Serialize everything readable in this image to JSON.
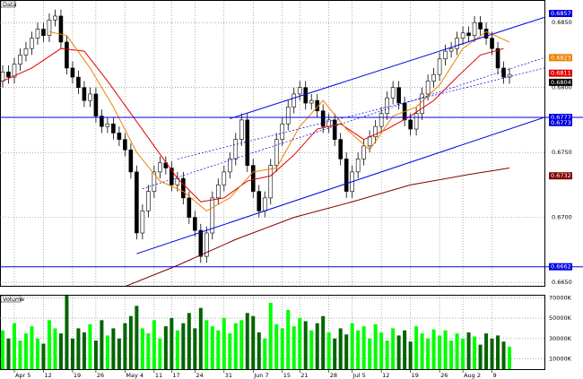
{
  "chart_data": [
    {
      "type": "candlestick",
      "series": [
        {
          "name": "Data",
          "open": [
            0.6805,
            0.6812,
            0.6808,
            0.6818,
            0.6825,
            0.683,
            0.6838,
            0.6845,
            0.684,
            0.6852,
            0.6855,
            0.6835,
            0.6815,
            0.6808,
            0.68,
            0.679,
            0.6795,
            0.6778,
            0.677,
            0.6772,
            0.6765,
            0.676,
            0.6752,
            0.6735,
            0.6688,
            0.6705,
            0.672,
            0.6735,
            0.6742,
            0.6738,
            0.6725,
            0.673,
            0.6715,
            0.67,
            0.669,
            0.667,
            0.6688,
            0.6715,
            0.6725,
            0.6735,
            0.6745,
            0.676,
            0.6775,
            0.674,
            0.672,
            0.6705,
            0.6715,
            0.674,
            0.676,
            0.6772,
            0.6785,
            0.6795,
            0.68,
            0.6788,
            0.679,
            0.6782,
            0.677,
            0.6775,
            0.676,
            0.6745,
            0.672,
            0.6735,
            0.6745,
            0.6755,
            0.6762,
            0.677,
            0.678,
            0.6792,
            0.68,
            0.6788,
            0.6775,
            0.6768,
            0.678,
            0.6795,
            0.6805,
            0.681,
            0.6822,
            0.6828,
            0.683,
            0.6838,
            0.6842,
            0.684,
            0.685,
            0.6845,
            0.6838,
            0.683,
            0.6815,
            0.6808
          ],
          "high": [
            0.6817,
            0.6817,
            0.6823,
            0.683,
            0.6835,
            0.6843,
            0.685,
            0.685,
            0.6857,
            0.686,
            0.686,
            0.684,
            0.682,
            0.6813,
            0.6805,
            0.68,
            0.68,
            0.6783,
            0.6777,
            0.6777,
            0.677,
            0.6765,
            0.6757,
            0.674,
            0.671,
            0.6725,
            0.674,
            0.6747,
            0.6747,
            0.6743,
            0.6735,
            0.6735,
            0.672,
            0.6705,
            0.6695,
            0.6693,
            0.672,
            0.673,
            0.674,
            0.675,
            0.6765,
            0.678,
            0.678,
            0.6745,
            0.6725,
            0.672,
            0.6745,
            0.6765,
            0.6777,
            0.679,
            0.68,
            0.6805,
            0.6805,
            0.6795,
            0.6795,
            0.6787,
            0.678,
            0.678,
            0.6765,
            0.675,
            0.674,
            0.675,
            0.676,
            0.6767,
            0.6775,
            0.6785,
            0.6797,
            0.6805,
            0.6805,
            0.6793,
            0.678,
            0.6785,
            0.68,
            0.681,
            0.6815,
            0.6827,
            0.6833,
            0.6835,
            0.6843,
            0.6847,
            0.6847,
            0.6855,
            0.6855,
            0.685,
            0.6843,
            0.6835,
            0.682,
            0.6815
          ],
          "low": [
            0.68,
            0.6803,
            0.6803,
            0.6813,
            0.682,
            0.6825,
            0.6833,
            0.6835,
            0.6835,
            0.6847,
            0.683,
            0.681,
            0.6803,
            0.6795,
            0.6785,
            0.6785,
            0.6773,
            0.6765,
            0.6765,
            0.676,
            0.6755,
            0.6747,
            0.673,
            0.6683,
            0.6683,
            0.67,
            0.6715,
            0.673,
            0.6733,
            0.672,
            0.672,
            0.671,
            0.6695,
            0.6685,
            0.6665,
            0.6665,
            0.6683,
            0.671,
            0.672,
            0.673,
            0.674,
            0.6755,
            0.6735,
            0.6715,
            0.67,
            0.67,
            0.671,
            0.6735,
            0.6755,
            0.6767,
            0.678,
            0.679,
            0.6783,
            0.6783,
            0.6777,
            0.6765,
            0.6765,
            0.6755,
            0.674,
            0.6715,
            0.6715,
            0.673,
            0.674,
            0.675,
            0.6757,
            0.6765,
            0.6775,
            0.6787,
            0.6783,
            0.677,
            0.6763,
            0.6763,
            0.6775,
            0.679,
            0.68,
            0.6805,
            0.6817,
            0.6823,
            0.6825,
            0.6833,
            0.6835,
            0.6835,
            0.684,
            0.6833,
            0.6825,
            0.681,
            0.6803,
            0.6803
          ],
          "close": [
            0.6812,
            0.6808,
            0.6818,
            0.6825,
            0.683,
            0.6838,
            0.6845,
            0.684,
            0.6852,
            0.6855,
            0.6835,
            0.6815,
            0.6808,
            0.68,
            0.679,
            0.6795,
            0.6778,
            0.677,
            0.6772,
            0.6765,
            0.676,
            0.6752,
            0.6735,
            0.6688,
            0.6705,
            0.672,
            0.6735,
            0.6742,
            0.6738,
            0.6725,
            0.673,
            0.6715,
            0.67,
            0.669,
            0.667,
            0.6688,
            0.6715,
            0.6725,
            0.6735,
            0.6745,
            0.676,
            0.6775,
            0.674,
            0.672,
            0.6705,
            0.6715,
            0.674,
            0.676,
            0.6772,
            0.6785,
            0.6795,
            0.68,
            0.6788,
            0.679,
            0.6782,
            0.677,
            0.6775,
            0.676,
            0.6745,
            0.672,
            0.6735,
            0.6745,
            0.6755,
            0.6762,
            0.677,
            0.678,
            0.6792,
            0.68,
            0.6788,
            0.6775,
            0.6768,
            0.678,
            0.6795,
            0.6805,
            0.681,
            0.6822,
            0.6828,
            0.683,
            0.6838,
            0.6842,
            0.684,
            0.685,
            0.6845,
            0.6838,
            0.683,
            0.6815,
            0.6808,
            0.681
          ]
        }
      ],
      "lines": [
        {
          "color": "#e00000",
          "x": [
            0,
            5,
            10,
            14,
            18,
            22,
            26,
            30,
            34,
            38,
            42,
            46,
            50,
            54,
            58,
            62,
            66,
            70,
            74,
            78,
            82,
            86
          ],
          "values": [
            0.6805,
            0.6815,
            0.683,
            0.6828,
            0.6805,
            0.678,
            0.6755,
            0.673,
            0.6712,
            0.6715,
            0.6728,
            0.6732,
            0.6748,
            0.6768,
            0.6772,
            0.676,
            0.6768,
            0.6778,
            0.679,
            0.6808,
            0.6825,
            0.683
          ]
        },
        {
          "color": "#f08000",
          "x": [
            8,
            11,
            15,
            19,
            23,
            27,
            31,
            35,
            39,
            43,
            47,
            51,
            55,
            59,
            63,
            67,
            71,
            75,
            79,
            83,
            87
          ],
          "values": [
            0.6843,
            0.684,
            0.6815,
            0.6785,
            0.675,
            0.6728,
            0.672,
            0.6705,
            0.6715,
            0.6735,
            0.6738,
            0.677,
            0.679,
            0.6768,
            0.6752,
            0.6778,
            0.6785,
            0.6802,
            0.683,
            0.6843,
            0.6835
          ]
        },
        {
          "color": "#800000",
          "x": [
            20,
            30,
            40,
            50,
            60,
            70,
            80,
            87
          ],
          "values": [
            0.6645,
            0.6663,
            0.6683,
            0.67,
            0.6712,
            0.6725,
            0.6733,
            0.6738
          ]
        },
        {
          "color": "#0000e0",
          "x": [
            39,
            93
          ],
          "values": [
            0.6776,
            0.6854
          ]
        },
        {
          "color": "#0000e0",
          "x": [
            23,
            93
          ],
          "values": [
            0.6672,
            0.6777
          ]
        },
        {
          "color": "#0000e0",
          "x": [
            24,
            93
          ],
          "values": [
            0.6722,
            0.6823
          ],
          "dash": true
        },
        {
          "color": "#0000e0",
          "x": [
            30,
            93
          ],
          "values": [
            0.6745,
            0.6815
          ],
          "dash": true
        }
      ],
      "price_labels": [
        {
          "value": 0.6857,
          "label": "0.6857",
          "color": "#0000e0"
        },
        {
          "value": 0.6823,
          "label": "0.6823",
          "color": "#f08000"
        },
        {
          "value": 0.6811,
          "label": "0.6811",
          "color": "#e00000"
        },
        {
          "value": 0.6804,
          "label": "0.6804",
          "color": "#000000"
        },
        {
          "value": 0.6777,
          "label": "0.6777",
          "color": "#0000e0",
          "line": true
        },
        {
          "value": 0.6773,
          "label": "0.6773",
          "color": "#0000e0"
        },
        {
          "value": 0.6732,
          "label": "0.6732",
          "color": "#800000"
        },
        {
          "value": 0.6662,
          "label": "0.6662",
          "color": "#0000e0",
          "line": true
        }
      ],
      "xlim": [
        -0.46,
        93
      ],
      "ylim": [
        0.6648,
        0.6866
      ],
      "yticks": [
        {
          "value": 0.685,
          "label": "0.6850"
        },
        {
          "value": 0.68,
          "label": "0.6800"
        },
        {
          "value": 0.675,
          "label": "0.6750"
        },
        {
          "value": 0.67,
          "label": "0.6700"
        },
        {
          "value": 0.665,
          "label": "0.6650"
        }
      ],
      "grid": true
    },
    {
      "type": "bar",
      "title": "Volume",
      "values": [
        38000,
        30000,
        45000,
        28000,
        35000,
        42000,
        30000,
        25000,
        48000,
        40000,
        35000,
        74000,
        30000,
        40000,
        36000,
        44000,
        28000,
        48000,
        33000,
        40000,
        30000,
        45000,
        52000,
        62000,
        40000,
        35000,
        48000,
        30000,
        42000,
        50000,
        38000,
        45000,
        55000,
        40000,
        60000,
        48000,
        42000,
        38000,
        50000,
        35000,
        45000,
        48000,
        55000,
        52000,
        36000,
        30000,
        65000,
        44000,
        40000,
        58000,
        42000,
        50000,
        47000,
        38000,
        45000,
        52000,
        36000,
        30000,
        40000,
        34000,
        45000,
        38000,
        42000,
        30000,
        44000,
        36000,
        28000,
        40000,
        33000,
        38000,
        27000,
        42000,
        35000,
        30000,
        39000,
        33000,
        38000,
        28000,
        35000,
        30000,
        36000,
        32000,
        24000,
        35000,
        30000,
        33000,
        27000,
        22000
      ],
      "colors": [
        "#00ff00",
        "#006400"
      ],
      "xlim": [
        -0.46,
        93
      ],
      "ylim": [
        0,
        72000
      ],
      "yticks": [
        {
          "value": 70000,
          "label": "70000K"
        },
        {
          "value": 50000,
          "label": "50000K"
        },
        {
          "value": 30000,
          "label": "30000K"
        },
        {
          "value": 10000,
          "label": "10000K"
        }
      ],
      "xticks": [
        {
          "value": 2,
          "label": "Apr 5"
        },
        {
          "value": 7,
          "label": "12"
        },
        {
          "value": 12,
          "label": "19"
        },
        {
          "value": 16,
          "label": "26"
        },
        {
          "value": 21,
          "label": "May 4"
        },
        {
          "value": 26,
          "label": "11"
        },
        {
          "value": 29,
          "label": "17"
        },
        {
          "value": 33,
          "label": "24"
        },
        {
          "value": 38,
          "label": "31"
        },
        {
          "value": 43,
          "label": "Jun 7"
        },
        {
          "value": 48,
          "label": "15"
        },
        {
          "value": 51,
          "label": "21"
        },
        {
          "value": 56,
          "label": "28"
        },
        {
          "value": 60,
          "label": "Jul 5"
        },
        {
          "value": 65,
          "label": "12"
        },
        {
          "value": 70,
          "label": "19"
        },
        {
          "value": 75,
          "label": "26"
        },
        {
          "value": 79,
          "label": "Aug 2"
        },
        {
          "value": 84,
          "label": "9"
        }
      ],
      "grid": true
    }
  ]
}
